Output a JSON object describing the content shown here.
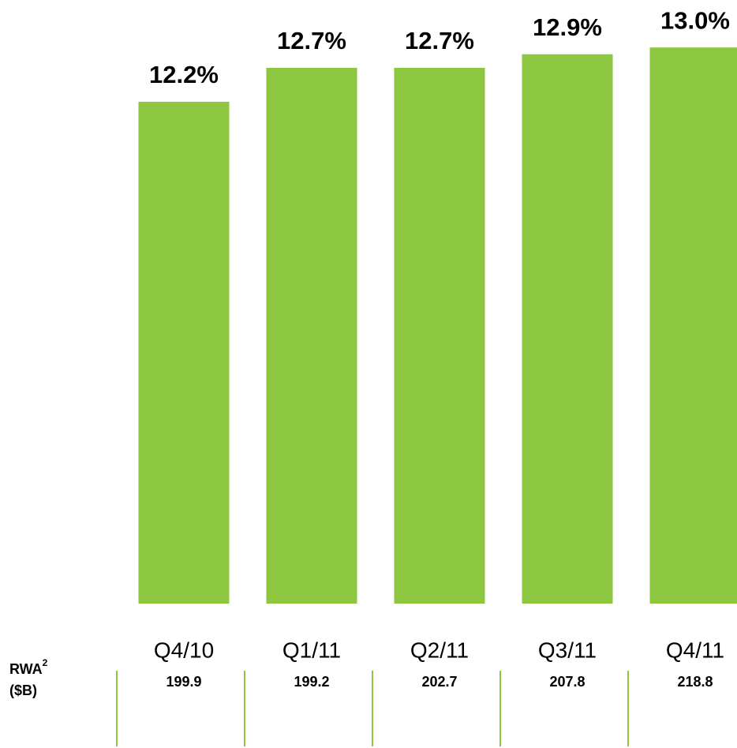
{
  "chart_data": {
    "type": "bar",
    "categories": [
      "Q4/10",
      "Q1/11",
      "Q2/11",
      "Q3/11",
      "Q4/11"
    ],
    "values": [
      12.2,
      12.7,
      12.7,
      12.9,
      13.0
    ],
    "value_labels": [
      "12.2%",
      "12.7%",
      "12.7%",
      "12.9%",
      "13.0%"
    ],
    "color": "#8dc63f",
    "ylim": [
      4.8,
      13.7
    ],
    "table": {
      "label": "RWA",
      "note": "2",
      "unit": "($B)",
      "values": [
        "199.9",
        "199.2",
        "202.7",
        "207.8",
        "218.8"
      ]
    }
  }
}
